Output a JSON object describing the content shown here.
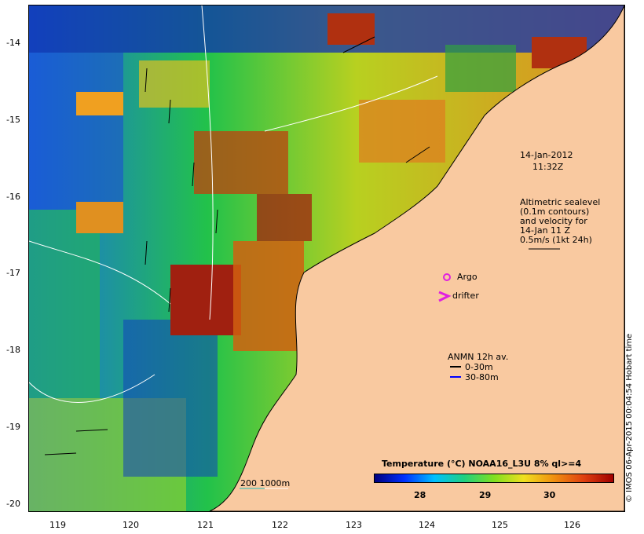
{
  "map": {
    "x_ticks": [
      "119",
      "120",
      "121",
      "122",
      "123",
      "124",
      "125",
      "126"
    ],
    "y_ticks": [
      "-14",
      "-15",
      "-16",
      "-17",
      "-18",
      "-19",
      "-20"
    ]
  },
  "annotations": {
    "date": "14-Jan-2012",
    "time": "11:32Z",
    "altimetry_line1": "Altimetric sealevel",
    "altimetry_line2": "(0.1m contours)",
    "altimetry_line3": "and velocity for",
    "altimetry_line4": "14-Jan 11 Z",
    "altimetry_line5": "0.5m/s (1kt 24h)",
    "argo": "Argo",
    "drifter": "drifter",
    "anmn_title": "ANMN 12h av.",
    "anmn_shallow": "0-30m",
    "anmn_deep": "30-80m",
    "bathy_label": "200 1000m"
  },
  "colorbar": {
    "title": "Temperature (°C) NOAA16_L3U 8% ql>=4",
    "ticks": [
      "28",
      "29",
      "30"
    ]
  },
  "credit": "© IMOS 06-Apr-2015 00:04:54 Hobart time",
  "colors": {
    "land": "#f9c9a0",
    "argo": "#e020e0",
    "drifter": "#e020e0",
    "anmn_shallow": "#000000",
    "anmn_deep": "#0000ff"
  }
}
